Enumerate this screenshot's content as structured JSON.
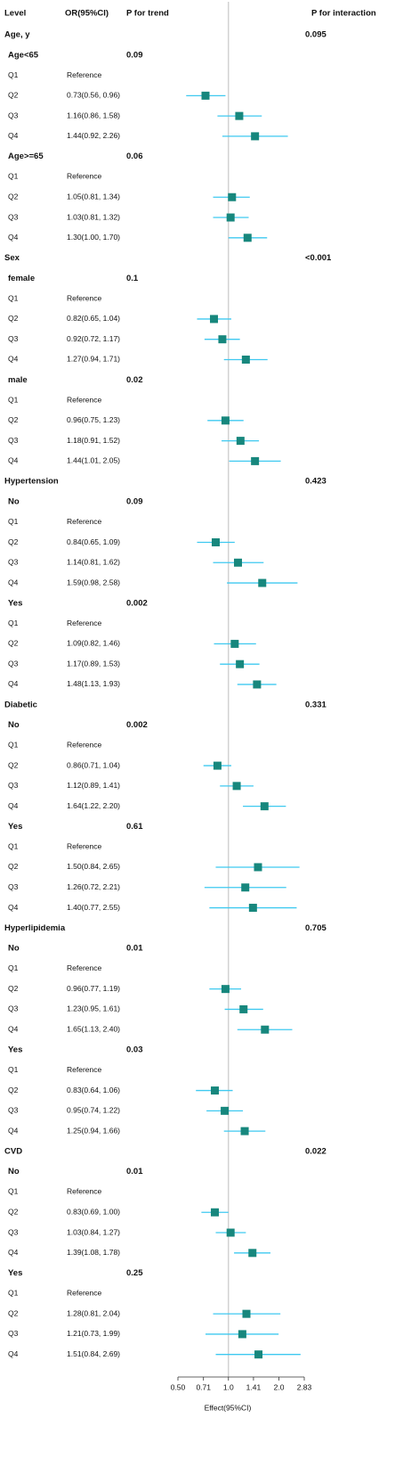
{
  "chart_data": {
    "type": "forest",
    "columns": [
      "Level",
      "OR(95%CI)",
      "P for trend",
      "P for interaction"
    ],
    "xlabel": "Effect(95%CI)",
    "log_x": true,
    "xlim": [
      0.5,
      2.83
    ],
    "xticks": [
      {
        "value": 0.5,
        "label": "0.50"
      },
      0.71,
      {
        "value": 1,
        "label": "1.0"
      },
      1.41,
      {
        "value": 2,
        "label": "2.0"
      },
      2.83
    ],
    "reference_line": 1,
    "marker_color": "#17877d",
    "ci_color": "#3ec9f0",
    "rows": [
      {
        "level": "Age, y",
        "p_interaction": "0.095"
      },
      {
        "level": "Age<65",
        "p_trend": "0.09"
      },
      {
        "level": "Q1",
        "or_ci": "Reference"
      },
      {
        "level": "Q2",
        "or_ci": "0.73(0.56, 0.96)",
        "or": 0.73,
        "lower": 0.56,
        "upper": 0.96
      },
      {
        "level": "Q3",
        "or_ci": "1.16(0.86, 1.58)",
        "or": 1.16,
        "lower": 0.86,
        "upper": 1.58
      },
      {
        "level": "Q4",
        "or_ci": "1.44(0.92, 2.26)",
        "or": 1.44,
        "lower": 0.92,
        "upper": 2.26
      },
      {
        "level": "Age>=65",
        "p_trend": "0.06"
      },
      {
        "level": "Q1",
        "or_ci": "Reference"
      },
      {
        "level": "Q2",
        "or_ci": "1.05(0.81, 1.34)",
        "or": 1.05,
        "lower": 0.81,
        "upper": 1.34
      },
      {
        "level": "Q3",
        "or_ci": "1.03(0.81, 1.32)",
        "or": 1.03,
        "lower": 0.81,
        "upper": 1.32
      },
      {
        "level": "Q4",
        "or_ci": "1.30(1.00, 1.70)",
        "or": 1.3,
        "lower": 1.0,
        "upper": 1.7
      },
      {
        "level": "Sex",
        "p_interaction": "<0.001"
      },
      {
        "level": "female",
        "p_trend": "0.1"
      },
      {
        "level": "Q1",
        "or_ci": "Reference"
      },
      {
        "level": "Q2",
        "or_ci": "0.82(0.65, 1.04)",
        "or": 0.82,
        "lower": 0.65,
        "upper": 1.04
      },
      {
        "level": "Q3",
        "or_ci": "0.92(0.72, 1.17)",
        "or": 0.92,
        "lower": 0.72,
        "upper": 1.17
      },
      {
        "level": "Q4",
        "or_ci": "1.27(0.94, 1.71)",
        "or": 1.27,
        "lower": 0.94,
        "upper": 1.71
      },
      {
        "level": "male",
        "p_trend": "0.02"
      },
      {
        "level": "Q1",
        "or_ci": "Reference"
      },
      {
        "level": "Q2",
        "or_ci": "0.96(0.75, 1.23)",
        "or": 0.96,
        "lower": 0.75,
        "upper": 1.23
      },
      {
        "level": "Q3",
        "or_ci": "1.18(0.91, 1.52)",
        "or": 1.18,
        "lower": 0.91,
        "upper": 1.52
      },
      {
        "level": "Q4",
        "or_ci": "1.44(1.01, 2.05)",
        "or": 1.44,
        "lower": 1.01,
        "upper": 2.05
      },
      {
        "level": "Hypertension",
        "p_interaction": "0.423"
      },
      {
        "level": "No",
        "p_trend": "0.09"
      },
      {
        "level": "Q1",
        "or_ci": "Reference"
      },
      {
        "level": "Q2",
        "or_ci": "0.84(0.65, 1.09)",
        "or": 0.84,
        "lower": 0.65,
        "upper": 1.09
      },
      {
        "level": "Q3",
        "or_ci": "1.14(0.81, 1.62)",
        "or": 1.14,
        "lower": 0.81,
        "upper": 1.62
      },
      {
        "level": "Q4",
        "or_ci": "1.59(0.98, 2.58)",
        "or": 1.59,
        "lower": 0.98,
        "upper": 2.58
      },
      {
        "level": "Yes",
        "p_trend": "0.002"
      },
      {
        "level": "Q1",
        "or_ci": "Reference"
      },
      {
        "level": "Q2",
        "or_ci": "1.09(0.82, 1.46)",
        "or": 1.09,
        "lower": 0.82,
        "upper": 1.46
      },
      {
        "level": "Q3",
        "or_ci": "1.17(0.89, 1.53)",
        "or": 1.17,
        "lower": 0.89,
        "upper": 1.53
      },
      {
        "level": "Q4",
        "or_ci": "1.48(1.13, 1.93)",
        "or": 1.48,
        "lower": 1.13,
        "upper": 1.93
      },
      {
        "level": "Diabetic",
        "p_interaction": "0.331"
      },
      {
        "level": "No",
        "p_trend": "0.002"
      },
      {
        "level": "Q1",
        "or_ci": "Reference"
      },
      {
        "level": "Q2",
        "or_ci": "0.86(0.71, 1.04)",
        "or": 0.86,
        "lower": 0.71,
        "upper": 1.04
      },
      {
        "level": "Q3",
        "or_ci": "1.12(0.89, 1.41)",
        "or": 1.12,
        "lower": 0.89,
        "upper": 1.41
      },
      {
        "level": "Q4",
        "or_ci": "1.64(1.22, 2.20)",
        "or": 1.64,
        "lower": 1.22,
        "upper": 2.2
      },
      {
        "level": "Yes",
        "p_trend": "0.61"
      },
      {
        "level": "Q1",
        "or_ci": "Reference"
      },
      {
        "level": "Q2",
        "or_ci": "1.50(0.84, 2.65)",
        "or": 1.5,
        "lower": 0.84,
        "upper": 2.65
      },
      {
        "level": "Q3",
        "or_ci": "1.26(0.72, 2.21)",
        "or": 1.26,
        "lower": 0.72,
        "upper": 2.21
      },
      {
        "level": "Q4",
        "or_ci": "1.40(0.77, 2.55)",
        "or": 1.4,
        "lower": 0.77,
        "upper": 2.55
      },
      {
        "level": "Hyperlipidemia",
        "p_interaction": "0.705"
      },
      {
        "level": "No",
        "p_trend": "0.01"
      },
      {
        "level": "Q1",
        "or_ci": "Reference"
      },
      {
        "level": "Q2",
        "or_ci": "0.96(0.77, 1.19)",
        "or": 0.96,
        "lower": 0.77,
        "upper": 1.19
      },
      {
        "level": "Q3",
        "or_ci": "1.23(0.95, 1.61)",
        "or": 1.23,
        "lower": 0.95,
        "upper": 1.61
      },
      {
        "level": "Q4",
        "or_ci": "1.65(1.13, 2.40)",
        "or": 1.65,
        "lower": 1.13,
        "upper": 2.4
      },
      {
        "level": "Yes",
        "p_trend": "0.03"
      },
      {
        "level": "Q1",
        "or_ci": "Reference"
      },
      {
        "level": "Q2",
        "or_ci": "0.83(0.64, 1.06)",
        "or": 0.83,
        "lower": 0.64,
        "upper": 1.06
      },
      {
        "level": "Q3",
        "or_ci": "0.95(0.74, 1.22)",
        "or": 0.95,
        "lower": 0.74,
        "upper": 1.22
      },
      {
        "level": "Q4",
        "or_ci": "1.25(0.94, 1.66)",
        "or": 1.25,
        "lower": 0.94,
        "upper": 1.66
      },
      {
        "level": "CVD",
        "p_interaction": "0.022"
      },
      {
        "level": "No",
        "p_trend": "0.01"
      },
      {
        "level": "Q1",
        "or_ci": "Reference"
      },
      {
        "level": "Q2",
        "or_ci": "0.83(0.69, 1.00)",
        "or": 0.83,
        "lower": 0.69,
        "upper": 1.0
      },
      {
        "level": "Q3",
        "or_ci": "1.03(0.84, 1.27)",
        "or": 1.03,
        "lower": 0.84,
        "upper": 1.27
      },
      {
        "level": "Q4",
        "or_ci": "1.39(1.08, 1.78)",
        "or": 1.39,
        "lower": 1.08,
        "upper": 1.78
      },
      {
        "level": "Yes",
        "p_trend": "0.25"
      },
      {
        "level": "Q1",
        "or_ci": "Reference"
      },
      {
        "level": "Q2",
        "or_ci": "1.28(0.81, 2.04)",
        "or": 1.28,
        "lower": 0.81,
        "upper": 2.04
      },
      {
        "level": "Q3",
        "or_ci": "1.21(0.73, 1.99)",
        "or": 1.21,
        "lower": 0.73,
        "upper": 1.99
      },
      {
        "level": "Q4",
        "or_ci": "1.51(0.84, 2.69)",
        "or": 1.51,
        "lower": 0.84,
        "upper": 2.69
      }
    ]
  }
}
